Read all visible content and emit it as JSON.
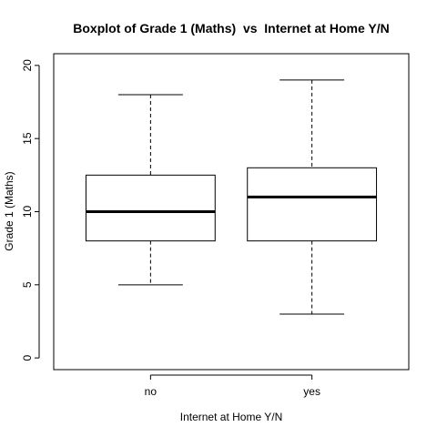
{
  "chart_data": {
    "type": "boxplot",
    "title": "Boxplot of Grade 1 (Maths)  vs  Internet at Home Y/N",
    "xlabel": "Internet at Home Y/N",
    "ylabel": "Grade 1 (Maths)",
    "ylim": [
      -0.8,
      20.8
    ],
    "y_ticks": [
      0,
      5,
      10,
      15,
      20
    ],
    "categories": [
      "no",
      "yes"
    ],
    "boxes": [
      {
        "category": "no",
        "whisker_low": 5,
        "q1": 8,
        "median": 10,
        "q3": 12.5,
        "whisker_high": 18
      },
      {
        "category": "yes",
        "whisker_low": 3,
        "q1": 8,
        "median": 11,
        "q3": 13,
        "whisker_high": 19
      }
    ],
    "grid": false,
    "legend": "none"
  }
}
